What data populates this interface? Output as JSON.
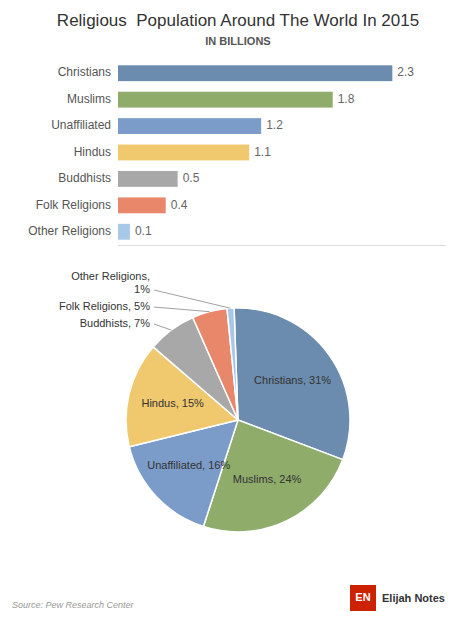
{
  "chart_data": [
    {
      "type": "bar",
      "title": "Religious  Population Around The World In 2015",
      "subtitle": "IN BILLIONS",
      "orientation": "horizontal",
      "categories": [
        "Christians",
        "Muslims",
        "Unaffiliated",
        "Hindus",
        "Buddhists",
        "Folk Religions",
        "Other Religions"
      ],
      "values": [
        2.3,
        1.8,
        1.2,
        1.1,
        0.5,
        0.4,
        0.1
      ],
      "colors": [
        "#6b8cae",
        "#8fac6b",
        "#7b9cc9",
        "#f0c96e",
        "#a8a8a8",
        "#e8876a",
        "#a8c8e8"
      ],
      "xlim": [
        0,
        2.75
      ],
      "data_labels": true,
      "tick_labels": "y",
      "grid": false
    },
    {
      "type": "pie",
      "values": [
        31,
        24,
        16,
        15,
        7,
        5,
        1
      ],
      "value_labels": [
        "Christians, 31%",
        "Muslims, 24%",
        "Unaffiliated, 16%",
        "Hindus, 15%",
        "Buddhists, 7%",
        "Folk Religions, 5%",
        "Other Religions,\n1%"
      ],
      "colors": [
        "#6b8cae",
        "#8fac6b",
        "#7b9cc9",
        "#f0c96e",
        "#a8a8a8",
        "#e8876a",
        "#a8c8e8"
      ],
      "data_labels": true,
      "annotations": [
        "Source: Pew Research Center",
        "Elijah Notes",
        "EN"
      ]
    }
  ]
}
